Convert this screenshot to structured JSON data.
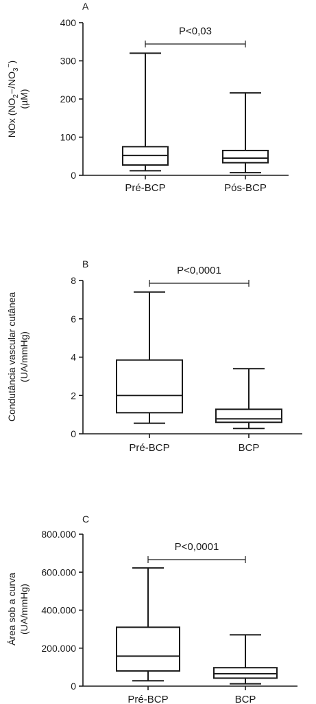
{
  "chart_data": [
    {
      "type": "box",
      "panel": "A",
      "ylabel": "NOx (NO2−/NO3−) (µM)",
      "ylabel_lines": [
        {
          "parts": [
            {
              "t": "NOx (NO"
            },
            {
              "t": "2",
              "sub": true
            },
            {
              "t": "−"
            },
            {
              "t": "",
              "sup": false
            },
            {
              "t": "/NO"
            },
            {
              "t": "3",
              "sub": true
            },
            {
              "t": "−",
              "sup": true
            },
            {
              "t": ")"
            }
          ]
        },
        {
          "parts": [
            {
              "t": "(µM)"
            }
          ]
        }
      ],
      "ylim": [
        0,
        400
      ],
      "yticks": [
        0,
        100,
        200,
        300,
        400
      ],
      "ytick_labels": [
        "0",
        "100",
        "200",
        "300",
        "400"
      ],
      "categories": [
        "Pré-BCP",
        "Pós-BCP"
      ],
      "boxes": [
        {
          "min": 12,
          "q1": 27,
          "median": 52,
          "q3": 75,
          "max": 320
        },
        {
          "min": 7,
          "q1": 33,
          "median": 45,
          "q3": 65,
          "max": 216
        }
      ],
      "significance": "P<0,03"
    },
    {
      "type": "box",
      "panel": "B",
      "ylabel": "Condutância vascular cutânea (UA/mmHg)",
      "ylabel_lines": [
        {
          "parts": [
            {
              "t": "Condutância vascular cutânea"
            }
          ]
        },
        {
          "parts": [
            {
              "t": "(UA/mmHg)"
            }
          ]
        }
      ],
      "ylim": [
        0,
        8
      ],
      "yticks": [
        0,
        2,
        4,
        6,
        8
      ],
      "ytick_labels": [
        "0",
        "2",
        "4",
        "6",
        "8"
      ],
      "categories": [
        "Pré-BCP",
        "BCP"
      ],
      "boxes": [
        {
          "min": 0.55,
          "q1": 1.1,
          "median": 2.0,
          "q3": 3.85,
          "max": 7.4
        },
        {
          "min": 0.28,
          "q1": 0.6,
          "median": 0.78,
          "q3": 1.28,
          "max": 3.4
        }
      ],
      "significance": "P<0,0001"
    },
    {
      "type": "box",
      "panel": "C",
      "ylabel": "Área sob a curva (UA/mmHg)",
      "ylabel_lines": [
        {
          "parts": [
            {
              "t": "Área sob a curva"
            }
          ]
        },
        {
          "parts": [
            {
              "t": "(UA/mmHg)"
            }
          ]
        }
      ],
      "ylim": [
        0,
        800000
      ],
      "yticks": [
        0,
        200000,
        400000,
        600000,
        800000
      ],
      "ytick_labels": [
        "0",
        "200.000",
        "400.000",
        "600.000",
        "800.000"
      ],
      "categories": [
        "Pré-BCP",
        "BCP"
      ],
      "boxes": [
        {
          "min": 28000,
          "q1": 80000,
          "median": 158000,
          "q3": 310000,
          "max": 622000
        },
        {
          "min": 12000,
          "q1": 42000,
          "median": 65000,
          "q3": 97000,
          "max": 270000
        }
      ],
      "significance": "P<0,0001"
    }
  ]
}
